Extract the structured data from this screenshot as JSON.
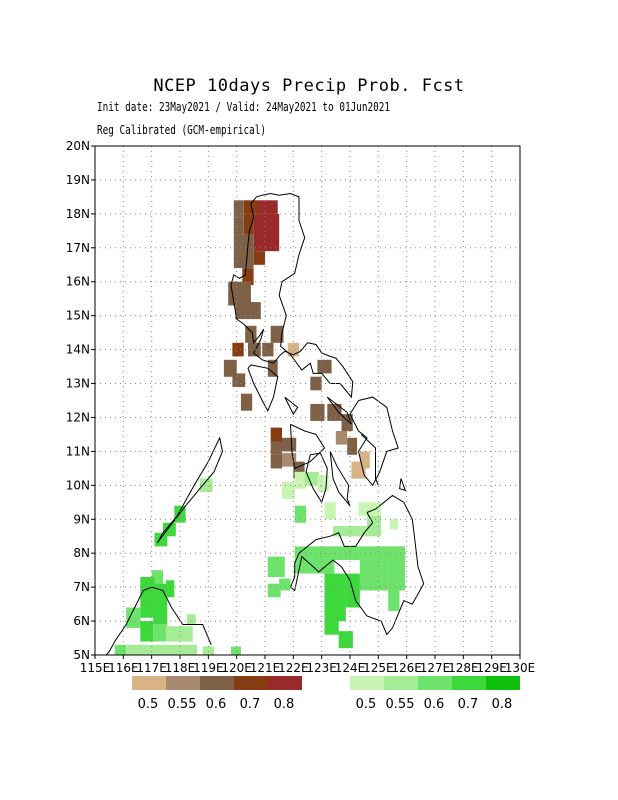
{
  "title": "NCEP 10days Precip Prob. Fcst",
  "subtitle_line1": "Init date: 23May2021 / Valid: 24May2021 to 01Jun2021",
  "subtitle_line2": "Reg Calibrated (GCM-empirical)",
  "axes": {
    "lat_ticks": [
      "5N",
      "6N",
      "7N",
      "8N",
      "9N",
      "10N",
      "11N",
      "12N",
      "13N",
      "14N",
      "15N",
      "16N",
      "17N",
      "18N",
      "19N",
      "20N"
    ],
    "lon_ticks": [
      "115E",
      "116E",
      "117E",
      "118E",
      "119E",
      "120E",
      "121E",
      "122E",
      "123E",
      "124E",
      "125E",
      "126E",
      "127E",
      "128E",
      "129E",
      "130E"
    ],
    "lon_range": [
      115,
      130
    ],
    "lat_range": [
      5,
      20
    ],
    "grid": "dotted"
  },
  "colors": {
    "dry": [
      "#d7b385",
      "#a98a6e",
      "#7e6047",
      "#843c10",
      "#9a2a2a"
    ],
    "wet": [
      "#c8f5b4",
      "#a6eb96",
      "#6ee36b",
      "#3cd83c",
      "#0dc10d"
    ],
    "coast": "#000000"
  },
  "legend": {
    "dry_labels": [
      "0.5",
      "0.55",
      "0.6",
      "0.7",
      "0.8"
    ],
    "wet_labels": [
      "0.5",
      "0.55",
      "0.6",
      "0.7",
      "0.8"
    ]
  },
  "cells": [
    {
      "lon": 119.9,
      "lat": 17.9,
      "w": 0.35,
      "h": 0.5,
      "c": "d3"
    },
    {
      "lon": 120.25,
      "lat": 18.0,
      "w": 0.5,
      "h": 0.4,
      "c": "d4"
    },
    {
      "lon": 120.75,
      "lat": 18.0,
      "w": 0.7,
      "h": 0.4,
      "c": "d5"
    },
    {
      "lon": 119.9,
      "lat": 17.4,
      "w": 0.35,
      "h": 0.5,
      "c": "d3"
    },
    {
      "lon": 120.25,
      "lat": 17.4,
      "w": 0.35,
      "h": 0.6,
      "c": "d4"
    },
    {
      "lon": 120.6,
      "lat": 16.9,
      "w": 0.9,
      "h": 1.1,
      "c": "d5"
    },
    {
      "lon": 119.9,
      "lat": 16.4,
      "w": 0.7,
      "h": 1.0,
      "c": "d3"
    },
    {
      "lon": 120.6,
      "lat": 16.5,
      "w": 0.4,
      "h": 0.4,
      "c": "d4"
    },
    {
      "lon": 120.2,
      "lat": 15.9,
      "w": 0.4,
      "h": 0.5,
      "c": "d4"
    },
    {
      "lon": 119.7,
      "lat": 15.3,
      "w": 0.8,
      "h": 0.7,
      "c": "d3"
    },
    {
      "lon": 119.95,
      "lat": 14.9,
      "w": 0.9,
      "h": 0.5,
      "c": "d3"
    },
    {
      "lon": 121.2,
      "lat": 14.2,
      "w": 0.45,
      "h": 0.5,
      "c": "d3"
    },
    {
      "lon": 120.3,
      "lat": 14.2,
      "w": 0.4,
      "h": 0.5,
      "c": "d3"
    },
    {
      "lon": 119.85,
      "lat": 13.8,
      "w": 0.4,
      "h": 0.4,
      "c": "d4"
    },
    {
      "lon": 120.4,
      "lat": 13.8,
      "w": 0.45,
      "h": 0.4,
      "c": "d3"
    },
    {
      "lon": 120.9,
      "lat": 13.8,
      "w": 0.4,
      "h": 0.4,
      "c": "d3"
    },
    {
      "lon": 121.8,
      "lat": 13.8,
      "w": 0.4,
      "h": 0.4,
      "c": "d1"
    },
    {
      "lon": 119.55,
      "lat": 13.2,
      "w": 0.45,
      "h": 0.5,
      "c": "d3"
    },
    {
      "lon": 119.85,
      "lat": 12.9,
      "w": 0.45,
      "h": 0.4,
      "c": "d3"
    },
    {
      "lon": 121.1,
      "lat": 13.2,
      "w": 0.35,
      "h": 0.5,
      "c": "d3"
    },
    {
      "lon": 122.85,
      "lat": 13.3,
      "w": 0.5,
      "h": 0.4,
      "c": "d3"
    },
    {
      "lon": 122.6,
      "lat": 12.8,
      "w": 0.4,
      "h": 0.4,
      "c": "d3"
    },
    {
      "lon": 120.15,
      "lat": 12.2,
      "w": 0.4,
      "h": 0.5,
      "c": "d3"
    },
    {
      "lon": 121.2,
      "lat": 11.2,
      "w": 0.4,
      "h": 0.5,
      "c": "d4"
    },
    {
      "lon": 121.6,
      "lat": 11.0,
      "w": 0.5,
      "h": 0.4,
      "c": "d3"
    },
    {
      "lon": 121.2,
      "lat": 10.9,
      "w": 0.4,
      "h": 0.4,
      "c": "d3"
    },
    {
      "lon": 121.2,
      "lat": 10.5,
      "w": 0.4,
      "h": 0.4,
      "c": "d3"
    },
    {
      "lon": 121.6,
      "lat": 10.55,
      "w": 0.5,
      "h": 0.4,
      "c": "d2"
    },
    {
      "lon": 122.0,
      "lat": 10.2,
      "w": 0.4,
      "h": 0.5,
      "c": "d3"
    },
    {
      "lon": 122.6,
      "lat": 11.9,
      "w": 0.5,
      "h": 0.5,
      "c": "d3"
    },
    {
      "lon": 123.2,
      "lat": 11.9,
      "w": 0.5,
      "h": 0.5,
      "c": "d3"
    },
    {
      "lon": 123.7,
      "lat": 11.6,
      "w": 0.4,
      "h": 0.5,
      "c": "d3"
    },
    {
      "lon": 123.5,
      "lat": 11.2,
      "w": 0.4,
      "h": 0.4,
      "c": "d2"
    },
    {
      "lon": 123.9,
      "lat": 10.9,
      "w": 0.35,
      "h": 0.5,
      "c": "d3"
    },
    {
      "lon": 124.05,
      "lat": 10.2,
      "w": 0.5,
      "h": 0.5,
      "c": "d1"
    },
    {
      "lon": 124.35,
      "lat": 10.5,
      "w": 0.35,
      "h": 0.5,
      "c": "d1"
    },
    {
      "lon": 118.7,
      "lat": 9.8,
      "w": 0.45,
      "h": 0.4,
      "c": "w2"
    },
    {
      "lon": 117.8,
      "lat": 8.9,
      "w": 0.4,
      "h": 0.5,
      "c": "w4"
    },
    {
      "lon": 117.4,
      "lat": 8.5,
      "w": 0.45,
      "h": 0.4,
      "c": "w4"
    },
    {
      "lon": 117.1,
      "lat": 8.2,
      "w": 0.45,
      "h": 0.4,
      "c": "w4"
    },
    {
      "lon": 121.6,
      "lat": 9.6,
      "w": 0.45,
      "h": 0.5,
      "c": "w1"
    },
    {
      "lon": 122.05,
      "lat": 9.9,
      "w": 0.4,
      "h": 0.5,
      "c": "w1"
    },
    {
      "lon": 122.4,
      "lat": 10.0,
      "w": 0.5,
      "h": 0.4,
      "c": "w2"
    },
    {
      "lon": 122.85,
      "lat": 9.8,
      "w": 0.4,
      "h": 0.5,
      "c": "w1"
    },
    {
      "lon": 122.05,
      "lat": 8.9,
      "w": 0.4,
      "h": 0.5,
      "c": "w3"
    },
    {
      "lon": 123.1,
      "lat": 9.0,
      "w": 0.4,
      "h": 0.5,
      "c": "w1"
    },
    {
      "lon": 124.3,
      "lat": 9.1,
      "w": 0.8,
      "h": 0.4,
      "c": "w1"
    },
    {
      "lon": 124.6,
      "lat": 8.5,
      "w": 0.5,
      "h": 0.6,
      "c": "w2"
    },
    {
      "lon": 125.4,
      "lat": 8.7,
      "w": 0.3,
      "h": 0.3,
      "c": "w1"
    },
    {
      "lon": 123.4,
      "lat": 8.5,
      "w": 1.3,
      "h": 0.3,
      "c": "w2"
    },
    {
      "lon": 122.05,
      "lat": 7.4,
      "w": 1.4,
      "h": 0.8,
      "c": "w3"
    },
    {
      "lon": 123.4,
      "lat": 7.8,
      "w": 2.2,
      "h": 0.4,
      "c": "w3"
    },
    {
      "lon": 121.1,
      "lat": 7.3,
      "w": 0.6,
      "h": 0.6,
      "c": "w3"
    },
    {
      "lon": 121.1,
      "lat": 6.7,
      "w": 0.45,
      "h": 0.4,
      "c": "w3"
    },
    {
      "lon": 121.5,
      "lat": 6.9,
      "w": 0.4,
      "h": 0.35,
      "c": "w3"
    },
    {
      "lon": 123.1,
      "lat": 6.0,
      "w": 0.75,
      "h": 1.4,
      "c": "w4"
    },
    {
      "lon": 123.85,
      "lat": 6.4,
      "w": 0.5,
      "h": 1.0,
      "c": "w4"
    },
    {
      "lon": 124.35,
      "lat": 6.9,
      "w": 1.0,
      "h": 0.9,
      "c": "w3"
    },
    {
      "lon": 125.35,
      "lat": 6.9,
      "w": 0.6,
      "h": 1.3,
      "c": "w3"
    },
    {
      "lon": 125.35,
      "lat": 6.3,
      "w": 0.4,
      "h": 0.6,
      "c": "w3"
    },
    {
      "lon": 123.6,
      "lat": 5.2,
      "w": 0.5,
      "h": 0.5,
      "c": "w4"
    },
    {
      "lon": 123.1,
      "lat": 5.6,
      "w": 0.5,
      "h": 0.4,
      "c": "w4"
    },
    {
      "lon": 117.0,
      "lat": 7.1,
      "w": 0.4,
      "h": 0.4,
      "c": "w3"
    },
    {
      "lon": 116.6,
      "lat": 6.1,
      "w": 0.5,
      "h": 1.2,
      "c": "w4"
    },
    {
      "lon": 117.05,
      "lat": 5.9,
      "w": 0.5,
      "h": 1.2,
      "c": "w4"
    },
    {
      "lon": 117.5,
      "lat": 6.7,
      "w": 0.3,
      "h": 0.5,
      "c": "w4"
    },
    {
      "lon": 116.1,
      "lat": 5.8,
      "w": 0.5,
      "h": 0.6,
      "c": "w3"
    },
    {
      "lon": 116.6,
      "lat": 5.4,
      "w": 0.45,
      "h": 0.6,
      "c": "w4"
    },
    {
      "lon": 117.05,
      "lat": 5.4,
      "w": 0.5,
      "h": 0.5,
      "c": "w3"
    },
    {
      "lon": 117.5,
      "lat": 5.4,
      "w": 0.95,
      "h": 0.45,
      "c": "w2"
    },
    {
      "lon": 118.25,
      "lat": 5.9,
      "w": 0.3,
      "h": 0.3,
      "c": "w2"
    },
    {
      "lon": 116.1,
      "lat": 5.0,
      "w": 2.5,
      "h": 0.3,
      "c": "w2"
    },
    {
      "lon": 115.7,
      "lat": 5.0,
      "w": 0.4,
      "h": 0.3,
      "c": "w3"
    },
    {
      "lon": 118.8,
      "lat": 5.0,
      "w": 0.4,
      "h": 0.25,
      "c": "w2"
    },
    {
      "lon": 119.8,
      "lat": 5.0,
      "w": 0.35,
      "h": 0.25,
      "c": "w3"
    }
  ],
  "coastlines": [
    [
      [
        121.2,
        18.6
      ],
      [
        120.9,
        18.55
      ],
      [
        120.7,
        18.5
      ],
      [
        120.5,
        18.3
      ],
      [
        120.6,
        17.9
      ],
      [
        120.45,
        17.5
      ],
      [
        120.4,
        17.1
      ],
      [
        120.35,
        16.6
      ],
      [
        120.3,
        16.2
      ],
      [
        120.1,
        16.1
      ],
      [
        119.9,
        16.2
      ],
      [
        119.8,
        15.9
      ],
      [
        119.9,
        15.4
      ],
      [
        120.0,
        14.9
      ],
      [
        120.25,
        14.75
      ],
      [
        120.55,
        14.5
      ],
      [
        120.6,
        14.2
      ],
      [
        120.8,
        14.4
      ],
      [
        120.95,
        14.6
      ],
      [
        120.85,
        14.3
      ],
      [
        120.6,
        13.9
      ],
      [
        120.9,
        13.7
      ],
      [
        121.3,
        13.6
      ],
      [
        121.55,
        13.85
      ],
      [
        121.7,
        13.95
      ],
      [
        122.0,
        13.85
      ],
      [
        122.25,
        13.95
      ],
      [
        122.5,
        14.2
      ],
      [
        122.8,
        14.15
      ],
      [
        123.0,
        13.9
      ],
      [
        123.3,
        13.8
      ],
      [
        123.5,
        13.75
      ],
      [
        123.75,
        13.5
      ],
      [
        124.1,
        13.05
      ],
      [
        124.05,
        12.6
      ],
      [
        123.85,
        12.8
      ],
      [
        123.65,
        13.0
      ],
      [
        123.3,
        13.0
      ],
      [
        123.0,
        13.3
      ],
      [
        122.7,
        13.3
      ],
      [
        122.6,
        13.6
      ],
      [
        122.3,
        13.4
      ],
      [
        121.9,
        13.85
      ],
      [
        121.55,
        14.1
      ],
      [
        121.6,
        14.5
      ],
      [
        121.75,
        15.0
      ],
      [
        121.5,
        15.6
      ],
      [
        121.6,
        16.0
      ],
      [
        122.05,
        16.25
      ],
      [
        122.2,
        16.8
      ],
      [
        122.4,
        17.3
      ],
      [
        122.2,
        17.8
      ],
      [
        122.2,
        18.5
      ],
      [
        121.9,
        18.6
      ],
      [
        121.5,
        18.55
      ],
      [
        121.2,
        18.6
      ]
    ],
    [
      [
        124.3,
        12.5
      ],
      [
        124.8,
        12.6
      ],
      [
        125.3,
        12.3
      ],
      [
        125.5,
        11.6
      ],
      [
        125.7,
        11.1
      ],
      [
        125.3,
        11.0
      ],
      [
        125.05,
        10.4
      ],
      [
        124.8,
        10.0
      ],
      [
        124.5,
        10.3
      ],
      [
        124.3,
        11.0
      ],
      [
        124.6,
        11.4
      ],
      [
        124.3,
        11.6
      ],
      [
        124.0,
        12.1
      ],
      [
        124.3,
        12.5
      ]
    ],
    [
      [
        124.4,
        11.5
      ],
      [
        124.9,
        11.1
      ],
      [
        124.9,
        10.2
      ],
      [
        125.0,
        10.0
      ]
    ],
    [
      [
        123.3,
        11.0
      ],
      [
        123.55,
        10.55
      ],
      [
        123.95,
        10.0
      ],
      [
        123.9,
        9.6
      ],
      [
        124.0,
        9.4
      ],
      [
        123.6,
        9.8
      ],
      [
        123.4,
        10.2
      ],
      [
        123.3,
        11.0
      ]
    ],
    [
      [
        122.95,
        10.95
      ],
      [
        123.2,
        10.5
      ],
      [
        123.15,
        9.9
      ],
      [
        123.0,
        9.5
      ],
      [
        122.7,
        9.9
      ],
      [
        122.45,
        10.4
      ],
      [
        122.6,
        10.9
      ],
      [
        122.95,
        10.95
      ]
    ],
    [
      [
        121.9,
        11.8
      ],
      [
        122.4,
        11.6
      ],
      [
        122.8,
        11.5
      ],
      [
        123.1,
        11.1
      ],
      [
        122.6,
        10.7
      ],
      [
        122.05,
        10.5
      ],
      [
        121.95,
        11.0
      ],
      [
        121.9,
        11.8
      ]
    ],
    [
      [
        124.6,
        9.2
      ],
      [
        124.9,
        9.3
      ],
      [
        125.5,
        9.7
      ],
      [
        125.9,
        9.5
      ],
      [
        126.2,
        9.0
      ],
      [
        126.3,
        8.3
      ],
      [
        126.4,
        7.6
      ],
      [
        126.6,
        7.1
      ],
      [
        126.2,
        6.5
      ],
      [
        125.9,
        6.6
      ],
      [
        125.5,
        5.8
      ],
      [
        125.3,
        5.6
      ],
      [
        125.1,
        6.0
      ],
      [
        124.6,
        6.15
      ],
      [
        124.2,
        6.6
      ],
      [
        124.0,
        7.2
      ],
      [
        123.7,
        7.6
      ],
      [
        123.4,
        7.8
      ],
      [
        122.9,
        7.45
      ],
      [
        122.7,
        7.6
      ],
      [
        122.3,
        7.9
      ],
      [
        122.05,
        6.9
      ],
      [
        121.9,
        7.0
      ],
      [
        122.05,
        7.3
      ],
      [
        122.05,
        7.7
      ],
      [
        122.2,
        8.0
      ],
      [
        122.8,
        8.4
      ],
      [
        123.3,
        8.5
      ],
      [
        123.6,
        8.6
      ],
      [
        123.8,
        8.2
      ],
      [
        124.2,
        8.2
      ],
      [
        124.5,
        8.6
      ],
      [
        124.8,
        8.9
      ],
      [
        124.6,
        9.2
      ]
    ],
    [
      [
        117.2,
        8.3
      ],
      [
        117.6,
        8.75
      ],
      [
        118.2,
        9.4
      ],
      [
        118.7,
        9.9
      ],
      [
        119.2,
        10.4
      ],
      [
        119.5,
        11.0
      ],
      [
        119.4,
        11.4
      ],
      [
        119.0,
        10.7
      ],
      [
        118.5,
        10.0
      ],
      [
        117.9,
        9.1
      ],
      [
        117.4,
        8.6
      ],
      [
        117.2,
        8.3
      ]
    ],
    [
      [
        120.5,
        13.55
      ],
      [
        121.1,
        13.45
      ],
      [
        121.45,
        13.2
      ],
      [
        121.3,
        12.6
      ],
      [
        121.1,
        12.2
      ],
      [
        120.9,
        12.5
      ],
      [
        120.6,
        13.0
      ],
      [
        120.4,
        13.45
      ],
      [
        120.5,
        13.55
      ]
    ],
    [
      [
        119.1,
        5.3
      ],
      [
        118.8,
        5.9
      ],
      [
        118.1,
        5.9
      ],
      [
        117.7,
        6.4
      ],
      [
        117.4,
        6.9
      ],
      [
        117.0,
        7.0
      ],
      [
        116.7,
        6.9
      ],
      [
        116.4,
        6.4
      ],
      [
        116.1,
        5.9
      ],
      [
        115.7,
        5.4
      ],
      [
        115.5,
        5.1
      ],
      [
        115.4,
        5.0
      ]
    ],
    [
      [
        123.2,
        12.6
      ],
      [
        123.9,
        12.15
      ],
      [
        124.05,
        11.8
      ],
      [
        123.6,
        12.15
      ],
      [
        123.2,
        12.6
      ]
    ],
    [
      [
        121.7,
        12.6
      ],
      [
        122.15,
        12.3
      ],
      [
        122.0,
        12.1
      ],
      [
        121.7,
        12.6
      ]
    ],
    [
      [
        125.8,
        10.2
      ],
      [
        125.95,
        9.85
      ],
      [
        125.75,
        9.9
      ],
      [
        125.8,
        10.2
      ]
    ]
  ]
}
